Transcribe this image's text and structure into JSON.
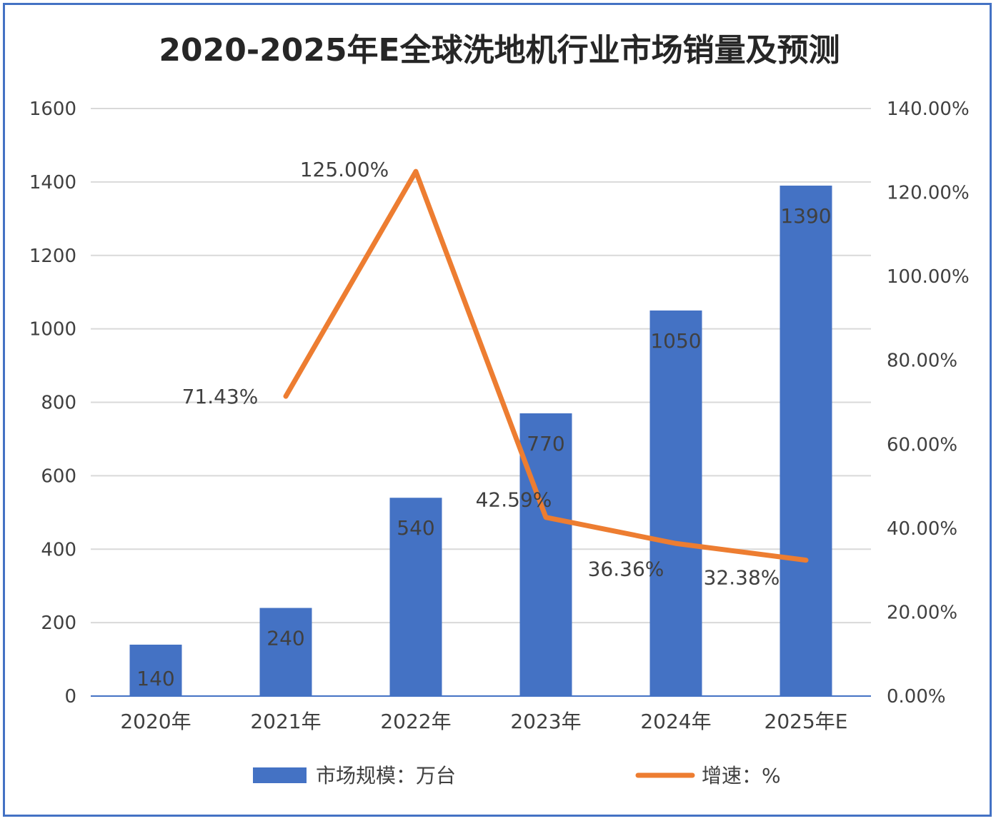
{
  "chart_data": {
    "type": "bar+line",
    "title": "2020-2025年E全球洗地机行业市场销量及预测",
    "categories": [
      "2020年",
      "2021年",
      "2022年",
      "2023年",
      "2024年",
      "2025年E"
    ],
    "bar_series": {
      "name": "市场规模：万台",
      "values": [
        140,
        240,
        540,
        770,
        1050,
        1390
      ],
      "labels": [
        "140",
        "240",
        "540",
        "770",
        "1050",
        "1390"
      ],
      "color": "#4472c4"
    },
    "line_series": {
      "name": "增速：%",
      "values": [
        71.43,
        125.0,
        42.59,
        36.36,
        32.38
      ],
      "start_index": 1,
      "labels": [
        "71.43%",
        "125.00%",
        "42.59%",
        "36.36%",
        "32.38%"
      ],
      "color": "#ed7d31"
    },
    "y_left": {
      "min": 0,
      "max": 1600,
      "step": 200,
      "ticks": [
        "0",
        "200",
        "400",
        "600",
        "800",
        "1000",
        "1200",
        "1400",
        "1600"
      ]
    },
    "y_right": {
      "min": 0,
      "max": 140,
      "step": 20,
      "ticks": [
        "0.00%",
        "20.00%",
        "40.00%",
        "60.00%",
        "80.00%",
        "100.00%",
        "120.00%",
        "140.00%"
      ]
    },
    "legend_position": "bottom",
    "grid": true
  }
}
